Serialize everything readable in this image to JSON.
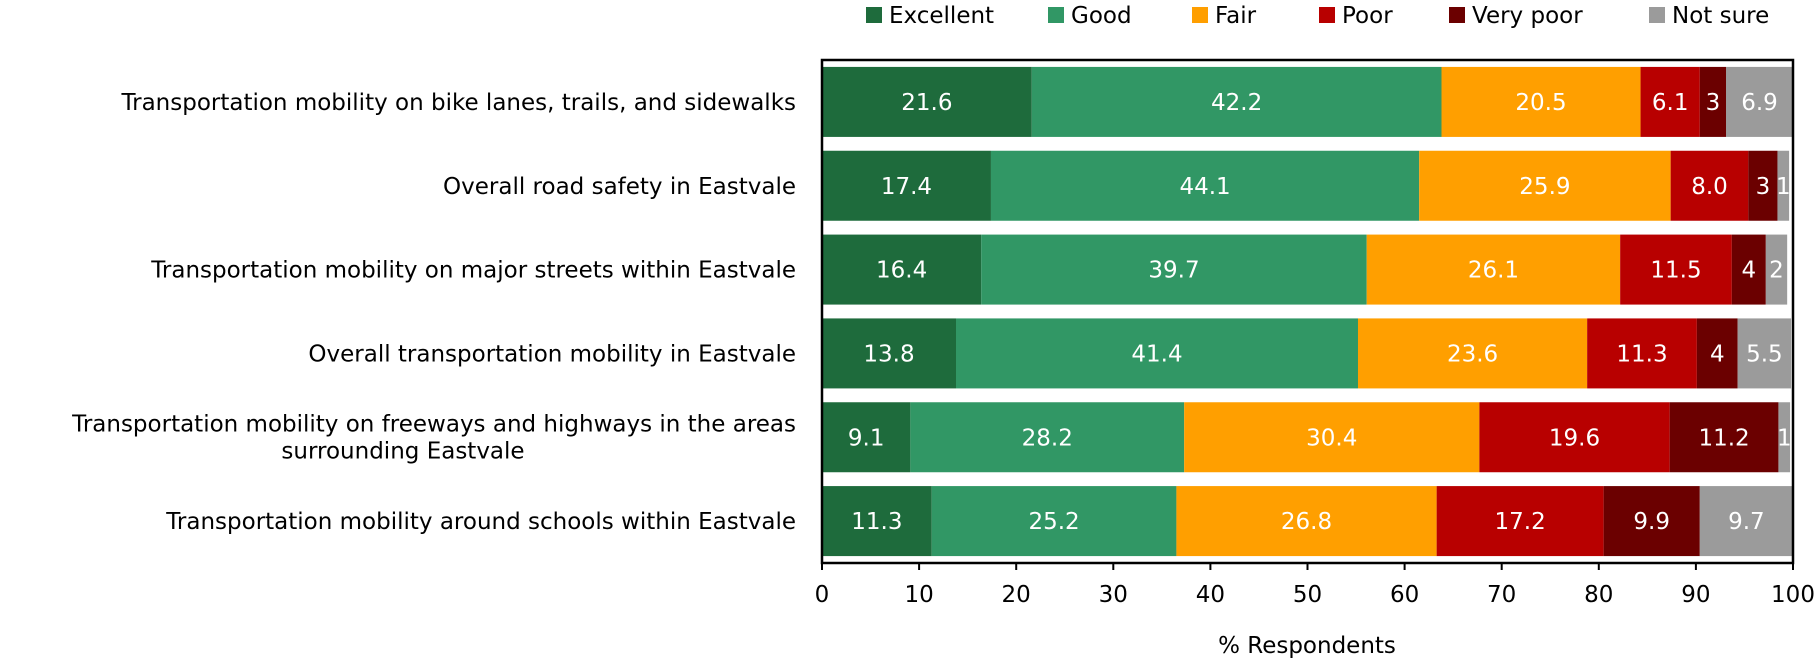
{
  "chart_data": {
    "type": "bar",
    "orientation": "horizontal",
    "stacked": true,
    "categories": [
      "Transportation mobility on bike lanes, trails, and sidewalks",
      "Overall road safety in Eastvale",
      "Transportation mobility on major streets within Eastvale",
      "Overall transportation mobility in Eastvale",
      "Transportation mobility on freeways and highways in the areas surrounding Eastvale",
      "Transportation mobility around schools within Eastvale"
    ],
    "series": [
      {
        "name": "Excellent",
        "color": "#1e6b3c",
        "label_color": "#ffffff",
        "values": [
          21.6,
          17.4,
          16.4,
          13.8,
          9.1,
          11.3
        ],
        "labels": [
          "21.6",
          "17.4",
          "16.4",
          "13.8",
          "9.1",
          "11.3"
        ]
      },
      {
        "name": "Good",
        "color": "#319765",
        "label_color": "#ffffff",
        "values": [
          42.2,
          44.1,
          39.7,
          41.4,
          28.2,
          25.2
        ],
        "labels": [
          "42.2",
          "44.1",
          "39.7",
          "41.4",
          "28.2",
          "25.2"
        ]
      },
      {
        "name": "Fair",
        "color": "#ff9f00",
        "label_color": "#ffffff",
        "values": [
          20.5,
          25.9,
          26.1,
          23.6,
          30.4,
          26.8
        ],
        "labels": [
          "20.5",
          "25.9",
          "26.1",
          "23.6",
          "30.4",
          "26.8"
        ]
      },
      {
        "name": "Poor",
        "color": "#b80000",
        "label_color": "#ffffff",
        "values": [
          6.1,
          8.0,
          11.5,
          11.3,
          19.6,
          17.2
        ],
        "labels": [
          "6.1",
          "8.0",
          "11.5",
          "11.3",
          "19.6",
          "17.2"
        ]
      },
      {
        "name": "Very poor",
        "color": "#6b0000",
        "label_color": "#ffffff",
        "values": [
          2.7,
          3.0,
          3.5,
          4.2,
          11.2,
          9.9
        ],
        "labels": [
          "3",
          "3",
          "4",
          "4",
          "11.2",
          "9.9"
        ]
      },
      {
        "name": "Not sure",
        "color": "#9b9b9b",
        "label_color": "#ffffff",
        "values": [
          6.9,
          1.2,
          2.2,
          5.5,
          1.2,
          9.7
        ],
        "labels": [
          "6.9",
          "1",
          "2",
          "5.5",
          "1",
          "9.7"
        ]
      }
    ],
    "xlabel": "% Respondents",
    "ylabel": "",
    "xlim": [
      0,
      100
    ],
    "xticks": [
      "0",
      "10",
      "20",
      "30",
      "40",
      "50",
      "60",
      "70",
      "80",
      "90",
      "100"
    ],
    "grid": false,
    "legend_position": "top"
  }
}
